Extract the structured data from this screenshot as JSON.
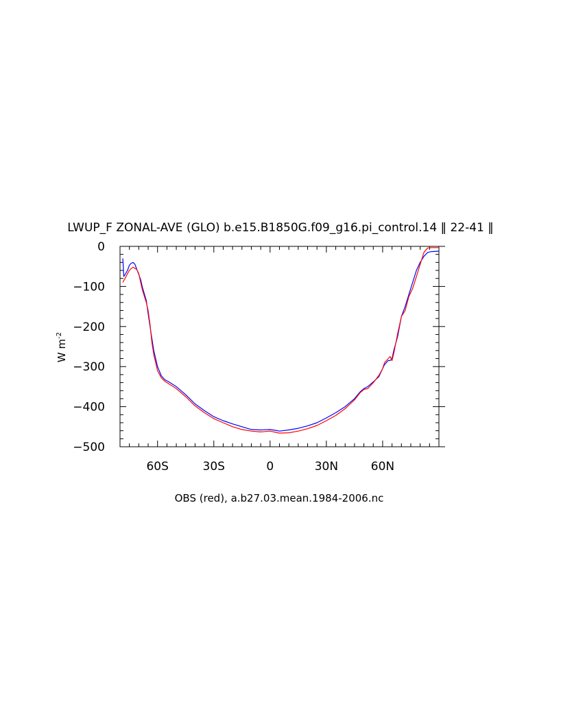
{
  "chart_data": {
    "type": "line",
    "title": "LWUP_F ZONAL-AVE (GLO) b.e15.B1850G.f09_g16.pi_control.14 ‖ 22-41 ‖",
    "xlabel": "OBS (red), a.b27.03.mean.1984-2006.nc",
    "ylabel": "W m",
    "ylabel_superscript": "-2",
    "xlim": [
      -80,
      90
    ],
    "ylim": [
      -500,
      0
    ],
    "x_ticks": [
      {
        "value": -60,
        "label": "60S"
      },
      {
        "value": -30,
        "label": "30S"
      },
      {
        "value": 0,
        "label": "0"
      },
      {
        "value": 30,
        "label": "30N"
      },
      {
        "value": 60,
        "label": "60N"
      }
    ],
    "y_ticks": [
      {
        "value": 0,
        "label": "0"
      },
      {
        "value": -100,
        "label": "−100"
      },
      {
        "value": -200,
        "label": "−200"
      },
      {
        "value": -300,
        "label": "−300"
      },
      {
        "value": -400,
        "label": "−400"
      },
      {
        "value": -500,
        "label": "−500"
      }
    ],
    "grid": false,
    "legend": "none",
    "series": [
      {
        "color": "#0000ff",
        "x": [
          -78.5,
          -78,
          -77.5,
          -76,
          -75,
          -74,
          -73,
          -72,
          -71,
          -70,
          -69,
          -68,
          -66,
          -65,
          -64,
          -63,
          -62,
          -60,
          -58,
          -56,
          -54,
          -50,
          -45,
          -40,
          -35,
          -30,
          -25,
          -20,
          -15,
          -10,
          -5,
          0,
          3,
          5,
          10,
          15,
          20,
          25,
          30,
          35,
          40,
          45,
          48,
          50,
          52,
          55,
          58,
          60,
          61,
          63,
          64,
          65,
          66,
          68,
          70,
          72,
          74,
          76,
          78,
          80,
          82,
          84,
          86,
          90
        ],
        "y": [
          -30,
          -75,
          -72,
          -60,
          -47,
          -42,
          -40,
          -45,
          -58,
          -70,
          -83,
          -103,
          -135,
          -168,
          -200,
          -230,
          -260,
          -300,
          -323,
          -333,
          -338,
          -350,
          -370,
          -393,
          -410,
          -425,
          -435,
          -443,
          -450,
          -457,
          -458,
          -457,
          -459,
          -461,
          -458,
          -454,
          -448,
          -440,
          -428,
          -415,
          -400,
          -380,
          -363,
          -355,
          -350,
          -338,
          -325,
          -305,
          -295,
          -285,
          -285,
          -280,
          -258,
          -225,
          -175,
          -150,
          -120,
          -90,
          -60,
          -40,
          -25,
          -15,
          -13,
          -12
        ]
      },
      {
        "color": "#ff0000",
        "x": [
          -78.5,
          -78,
          -77.5,
          -76,
          -75,
          -74,
          -73,
          -72,
          -71,
          -70,
          -69,
          -68,
          -66,
          -65,
          -64,
          -63,
          -62,
          -60,
          -58,
          -56,
          -54,
          -50,
          -45,
          -40,
          -35,
          -30,
          -25,
          -20,
          -15,
          -10,
          -5,
          0,
          3,
          5,
          10,
          15,
          20,
          25,
          30,
          35,
          40,
          45,
          48,
          50,
          52,
          55,
          58,
          60,
          61,
          63,
          64,
          65,
          66,
          68,
          70,
          72,
          74,
          76,
          78,
          80,
          81,
          82,
          84,
          86,
          90
        ],
        "y": [
          -90,
          -85,
          -82,
          -68,
          -60,
          -55,
          -52,
          -55,
          -58,
          -68,
          -90,
          -110,
          -140,
          -160,
          -195,
          -240,
          -270,
          -310,
          -328,
          -337,
          -343,
          -355,
          -375,
          -398,
          -415,
          -430,
          -440,
          -450,
          -457,
          -461,
          -463,
          -461,
          -464,
          -466,
          -465,
          -461,
          -455,
          -447,
          -435,
          -422,
          -405,
          -383,
          -365,
          -357,
          -355,
          -340,
          -322,
          -305,
          -290,
          -280,
          -275,
          -285,
          -265,
          -218,
          -175,
          -160,
          -125,
          -105,
          -75,
          -45,
          -30,
          -15,
          -4,
          -3,
          -3
        ]
      }
    ]
  }
}
